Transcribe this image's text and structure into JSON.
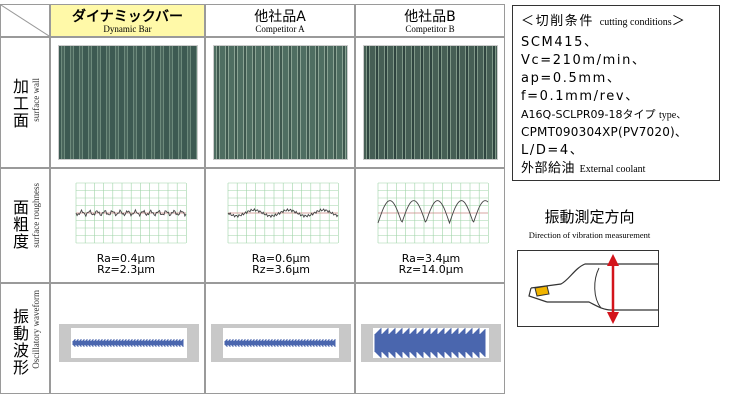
{
  "header": {
    "columns": [
      {
        "ja": "ダイナミックバー",
        "en": "Dynamic Bar"
      },
      {
        "ja": "他社品A",
        "en": "Competitor A"
      },
      {
        "ja": "他社品B",
        "en": "Competitor B"
      }
    ]
  },
  "rows": [
    {
      "ja": "加工面",
      "en": "surface wall"
    },
    {
      "ja": "面粗度",
      "en": "surface roughness"
    },
    {
      "ja": "振動波形",
      "en": "Oscillatory waveform"
    }
  ],
  "roughness": [
    {
      "ra": "Ra=0.4μm",
      "rz": "Rz=2.3μm"
    },
    {
      "ra": "Ra=0.6μm",
      "rz": "Rz=3.6μm"
    },
    {
      "ra": "Ra=3.4μm",
      "rz": "Rz=14.0μm"
    }
  ],
  "conditions": {
    "title_open": "＜切削条件",
    "title_en": "cutting conditions",
    "title_close": "＞",
    "lines": [
      "SCM415、",
      "Vc=210m/min、",
      "ap=0.5mm、",
      "f=0.1mm/rev、"
    ],
    "type_ja": "A16Q-SCLPR09-18タイプ",
    "type_en": "type、",
    "lines2": [
      "CPMT090304XP(PV7020)、",
      "L/D=4、"
    ],
    "coolant_ja": "外部給油",
    "coolant_en": "External coolant"
  },
  "vibration_direction": {
    "title": "振動測定方向",
    "subtitle": "Direction of vibration measurement"
  }
}
